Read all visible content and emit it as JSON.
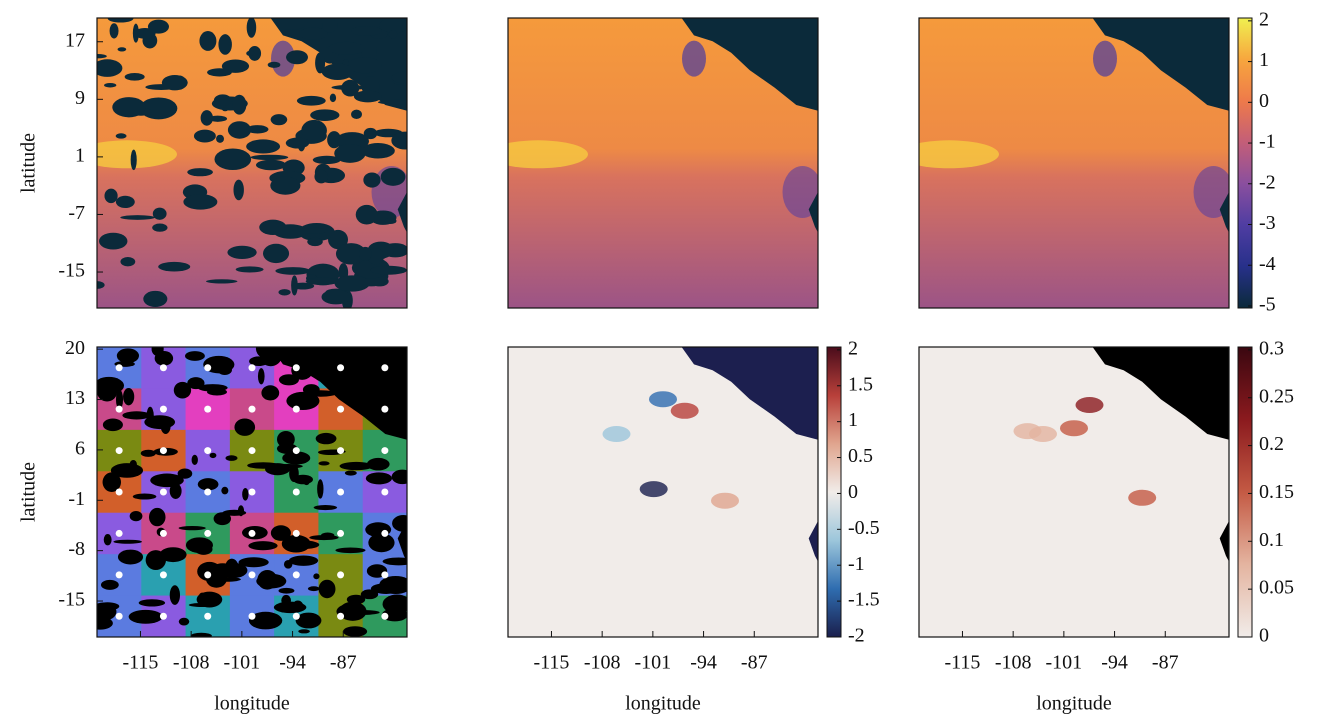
{
  "chart_data": [
    {
      "type": "heatmap",
      "ylabel": "latitude",
      "xlim": [
        -121,
        -78.2
      ],
      "ylim": [
        -20,
        20.3
      ],
      "yticks": [
        17,
        9,
        1,
        -7,
        -15
      ]
    },
    {
      "type": "heatmap",
      "xlim": [
        -121,
        -78.2
      ],
      "ylim": [
        -20,
        20.3
      ]
    },
    {
      "type": "heatmap",
      "xlim": [
        -121,
        -78.2
      ],
      "ylim": [
        -20,
        20.3
      ],
      "colorbar": {
        "lim": [
          -5.05,
          2.07
        ],
        "ticks": [
          2,
          1,
          0,
          -1,
          -2,
          -3,
          -4,
          -5
        ],
        "colors": [
          "#0b2a3a",
          "#27308a",
          "#4f3da2",
          "#8a4f9e",
          "#c35e78",
          "#ee7a4a",
          "#f7a63e",
          "#f0f050"
        ]
      }
    },
    {
      "type": "heatmap",
      "xlabel": "longitude",
      "ylabel": "latitude",
      "xlim": [
        -121,
        -78.2
      ],
      "ylim": [
        -20,
        20.3
      ],
      "xticks": [
        -115,
        -108,
        -101,
        -94,
        -87
      ],
      "yticks": [
        20,
        13,
        6,
        -1,
        -8,
        -15
      ]
    },
    {
      "type": "heatmap",
      "xlabel": "longitude",
      "xlim": [
        -121,
        -78.2
      ],
      "ylim": [
        -20,
        20.3
      ],
      "xticks": [
        -115,
        -108,
        -101,
        -94,
        -87
      ],
      "colorbar": {
        "lim": [
          -2,
          2.04
        ],
        "ticks": [
          2,
          1.5,
          1,
          0.5,
          0,
          -0.5,
          -1,
          -1.5,
          -2
        ],
        "colors": [
          "#1a1f4d",
          "#2f6db0",
          "#9cc6db",
          "#f1ece9",
          "#e0a58e",
          "#b8403a",
          "#4a0c1b"
        ]
      }
    },
    {
      "type": "heatmap",
      "xlabel": "longitude",
      "xlim": [
        -121,
        -78.2
      ],
      "ylim": [
        -20,
        20.3
      ],
      "xticks": [
        -115,
        -108,
        -101,
        -94,
        -87
      ],
      "colorbar": {
        "lim": [
          0,
          0.303
        ],
        "ticks": [
          0.3,
          0.25,
          0.2,
          0.15,
          0.1,
          0.05,
          0
        ],
        "colors": [
          "#f1ece9",
          "#e4b4a0",
          "#c45a44",
          "#8b1a1e",
          "#3a0710"
        ]
      }
    }
  ]
}
